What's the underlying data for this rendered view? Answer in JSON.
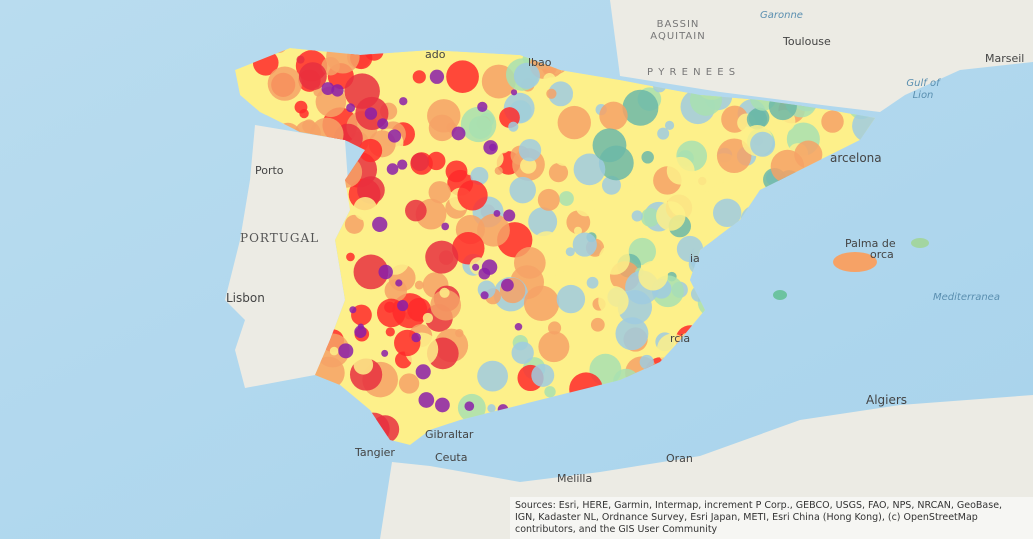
{
  "labels": {
    "bassin": "BASSIN",
    "aquitain": "AQUITAIN",
    "garonne": "Garonne",
    "toulouse": "Toulouse",
    "marseille": "Marseil",
    "bordeaux": "ado",
    "bilbao": "lbao",
    "pyrenees": "P Y R E N E E S",
    "gulf": "Gulf of",
    "lion": "Lion",
    "barcelona": "arcelona",
    "porto": "Porto",
    "portugal": "PORTUGAL",
    "lisbon": "Lisbon",
    "palma": "Palma de",
    "mallorca": "orca",
    "valencia": "ia",
    "murcia": "rcia",
    "mediterranean": "Mediterranea",
    "gibraltar": "Gibraltar",
    "tangier": "Tangier",
    "ceuta": "Ceuta",
    "melilla": "Melilla",
    "oran": "Oran",
    "algiers": "Algiers"
  },
  "attribution": [
    "Sources: Esri, HERE, Garmin, Intermap, increment P Corp., GEBCO, USGS, FAO, NPS, NRCAN, GeoBase,",
    "IGN, Kadaster NL, Ordnance Survey, Esri Japan, METI, Esri China (Hong Kong), (c) OpenStreetMap",
    "contributors, and the GIS User Community"
  ]
}
